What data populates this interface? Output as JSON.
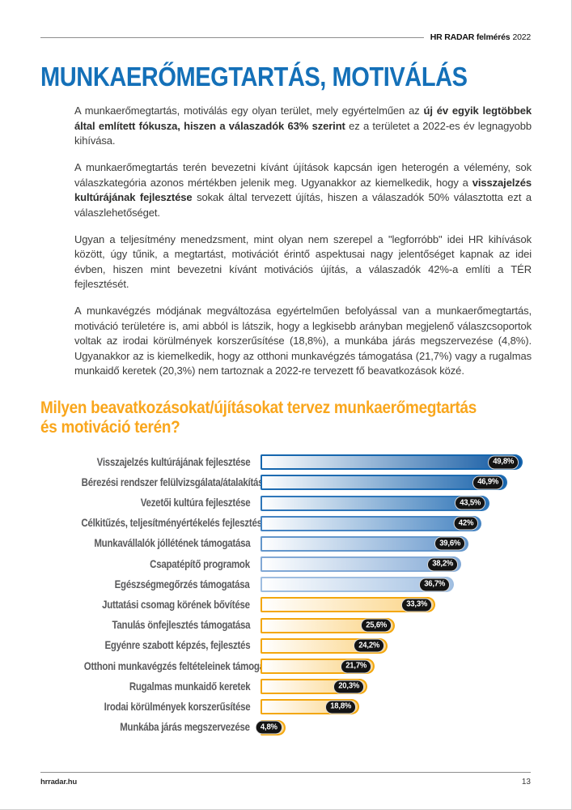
{
  "header": {
    "brand": "HR RADAR felmérés",
    "year": "2022"
  },
  "title": {
    "text": "MUNKAERŐMEGTARTÁS, MOTIVÁLÁS"
  },
  "colors": {
    "title_blue": "#1470b8",
    "heading_orange": "#f9a61c",
    "body_text": "#3b3b3a",
    "label_gray": "#59595b",
    "badge_bg": "#141414",
    "badge_text": "#ffffff"
  },
  "paragraphs": [
    {
      "segments": [
        {
          "text": "A munkaerőmegtartás, motiválás egy olyan terület, mely egyértelműen az ",
          "bold": false
        },
        {
          "text": "új év egyik legtöbbek által említett fókusza, hiszen a válaszadók 63% szerint",
          "bold": true
        },
        {
          "text": " ez a területet a 2022-es év legnagyobb kihívása.",
          "bold": false
        }
      ]
    },
    {
      "segments": [
        {
          "text": "A munkaerőmegtartás terén bevezetni kívánt újítások kapcsán igen heterogén a vélemény, sok válaszkategória azonos mértékben jelenik meg. Ugyanakkor az kiemelkedik, hogy a ",
          "bold": false
        },
        {
          "text": "visszajelzés kultúrájának fejlesztése",
          "bold": true
        },
        {
          "text": " sokak által tervezett újítás, hiszen a válaszadók 50% választotta ezt a válaszlehetőséget.",
          "bold": false
        }
      ]
    },
    {
      "segments": [
        {
          "text": "Ugyan a teljesítmény menedzsment, mint olyan nem szerepel a \"legforróbb\" idei HR kihívások között, úgy tűnik, a megtartást, motivációt érintő aspektusai nagy jelentőséget kapnak az idei évben, hiszen mint bevezetni kívánt motivációs újítás, a válaszadók 42%-a említi a TÉR fejlesztését.",
          "bold": false
        }
      ]
    },
    {
      "segments": [
        {
          "text": "A munkavégzés módjának megváltozása egyértelműen befolyással van a munkaerőmegtartás, motiváció területére is, ami abból is látszik, hogy a legkisebb arányban megjelenő válaszcsoportok voltak az irodai körülmények korszerűsítése (18,8%), a munkába járás megszervezése (4,8%). Ugyanakkor az is kiemelkedik, hogy az otthoni munkavégzés támogatása (21,7%) vagy a rugalmas munkaidő keretek (20,3%) nem tartoznak a 2022-re tervezett fő beavatkozások közé.",
          "bold": false
        }
      ]
    }
  ],
  "section_heading": {
    "line1": "Milyen beavatkozásokat/újításokat tervez munkaerőmegtartás",
    "line2": "és motiváció terén?"
  },
  "chart_data": {
    "type": "bar",
    "orientation": "horizontal",
    "title": "Milyen beavatkozásokat/újításokat tervez munkaerőmegtartás és motiváció terén?",
    "xlim": [
      0,
      50
    ],
    "grid": false,
    "legend": false,
    "categories": [
      "Visszajelzés kultúrájának fejlesztése",
      "Bérezési rendszer felülvizsgálata/átalakítása",
      "Vezetői kultúra fejlesztése",
      "Célkitűzés, teljesítményértékelés fejlesztése",
      "Munkavállalók jóllétének támogatása",
      "Csapatépítő programok",
      "Egészségmegőrzés támogatása",
      "Juttatási csomag körének bővítése",
      "Tanulás önfejlesztés támogatása",
      "Egyénre szabott képzés, fejlesztés",
      "Otthoni munkavégzés feltételeinek támogatása",
      "Rugalmas munkaidő keretek",
      "Irodai körülmények korszerűsítése",
      "Munkába járás megszervezése"
    ],
    "values": [
      49.8,
      46.9,
      43.5,
      42,
      39.6,
      38.2,
      36.7,
      33.3,
      25.6,
      24.2,
      21.7,
      20.3,
      18.8,
      4.8
    ],
    "value_labels": [
      "49,8%",
      "46,9%",
      "43,5%",
      "42%",
      "39,6%",
      "38,2%",
      "36,7%",
      "33,3%",
      "25,6%",
      "24,2%",
      "21,7%",
      "20,3%",
      "18,8%",
      "4,8%"
    ],
    "bar_gradient_start": "#ffffff",
    "bar_end_colors": [
      "#0a54a0",
      "#1661aa",
      "#2b72b6",
      "#4583c1",
      "#6697cc",
      "#84aad6",
      "#a2c0e2",
      "#fbd383",
      "#fbd383",
      "#fbd383",
      "#fbd383",
      "#fbd383",
      "#fbd383",
      "#fbd383"
    ],
    "bar_border_colors": [
      "#1566ae",
      "#1d6bb1",
      "#2e76b9",
      "#4684c2",
      "#6396cb",
      "#81a8d5",
      "#9ebde0",
      "#f3a70d",
      "#f3a70d",
      "#f3a70d",
      "#f3a70d",
      "#f3a70d",
      "#f3a70d",
      "#f3a70d"
    ]
  },
  "footer": {
    "site": "hrradar.hu",
    "page_number": "13"
  }
}
